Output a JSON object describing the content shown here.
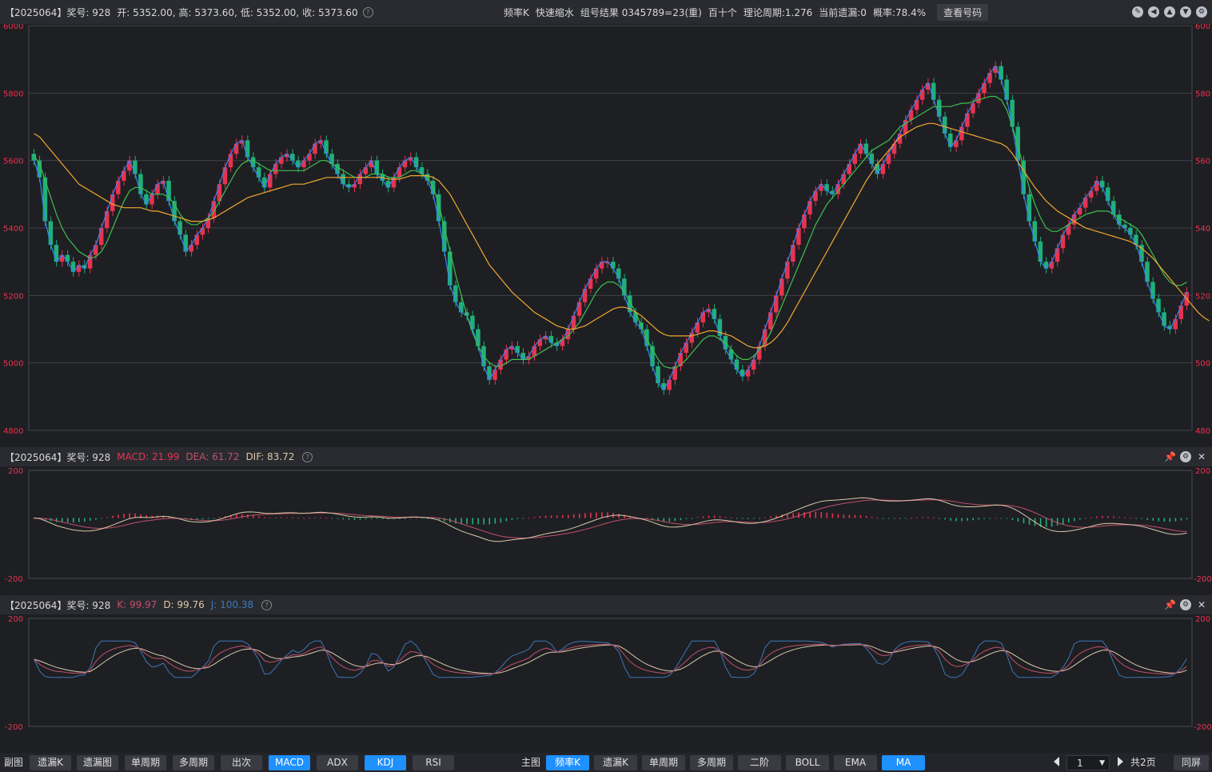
{
  "header": {
    "period": "【2025064】",
    "award": "奖号: 928",
    "open": "开: 5352.00,",
    "high": "高: 5373.60,",
    "low": "低: 5352.00,",
    "close": "收: 5373.60",
    "mode": "频率K",
    "action": "快速缩水",
    "combo": "组号结果 0345789=23(重)",
    "position": "百十个",
    "theory_period": "理论周期:1.276",
    "current_miss": "当前遗漏:0",
    "probability": "概率:78.4%",
    "check_button": "查看号码"
  },
  "macd_panel": {
    "period": "【2025064】",
    "award": "奖号: 928",
    "macd": "MACD: 21.99",
    "dea": "DEA: 61.72",
    "dif": "DIF: 83.72",
    "y_top": "200",
    "y_bottom": "-200"
  },
  "kdj_panel": {
    "period": "【2025064】",
    "award": "奖号: 928",
    "k": "K: 99.97",
    "d": "D: 99.76",
    "j": "J: 100.38",
    "y_top": "200",
    "y_bottom": "-200"
  },
  "colors": {
    "up": "#e8334f",
    "down": "#1fb07a",
    "ma_blue": "#3b82f6",
    "ma_green": "#3fbf4f",
    "ma_orange": "#f0a830",
    "macd_dif": "#d8c8a8",
    "macd_dea": "#c0506a",
    "kdj_k": "#c0506a",
    "kdj_d": "#d8c8a8",
    "kdj_j": "#3b78b8"
  },
  "chart_data": {
    "type": "line",
    "title": "",
    "y_ticks": [
      "6000",
      "5800",
      "5600",
      "5400",
      "5200",
      "5000",
      "4800"
    ],
    "y_right_ticks": [
      "600",
      "580",
      "560",
      "540",
      "520",
      "500",
      "480"
    ],
    "ylim": [
      4800,
      6000
    ],
    "series": [
      {
        "values": [
          5600,
          5550,
          5420,
          5350,
          5300,
          5320,
          5300,
          5270,
          5290,
          5280,
          5320,
          5350,
          5400,
          5450,
          5500,
          5540,
          5570,
          5600,
          5560,
          5500,
          5470,
          5500,
          5530,
          5540,
          5480,
          5420,
          5380,
          5330,
          5350,
          5380,
          5400,
          5430,
          5480,
          5530,
          5580,
          5620,
          5650,
          5660,
          5610,
          5580,
          5550,
          5520,
          5560,
          5590,
          5610,
          5620,
          5600,
          5580,
          5600,
          5620,
          5650,
          5660,
          5620,
          5590,
          5560,
          5530,
          5520,
          5530,
          5560,
          5580,
          5600,
          5560,
          5540,
          5520,
          5550,
          5580,
          5600,
          5610,
          5580,
          5560,
          5540,
          5500,
          5420,
          5330,
          5230,
          5180,
          5150,
          5140,
          5100,
          5050,
          4990,
          4950,
          4980,
          5010,
          5040,
          5050,
          5030,
          5010,
          5020,
          5050,
          5070,
          5080,
          5060,
          5050,
          5070,
          5100,
          5140,
          5180,
          5220,
          5250,
          5280,
          5300,
          5300,
          5280,
          5250,
          5200,
          5150,
          5120,
          5100,
          5050,
          4990,
          4940,
          4920,
          4950,
          4990,
          5030,
          5060,
          5090,
          5120,
          5150,
          5160,
          5130,
          5080,
          5040,
          5010,
          4980,
          4960,
          4980,
          5010,
          5050,
          5100,
          5150,
          5200,
          5250,
          5300,
          5350,
          5400,
          5440,
          5480,
          5510,
          5530,
          5510,
          5500,
          5530,
          5560,
          5590,
          5620,
          5650,
          5620,
          5590,
          5560,
          5590,
          5620,
          5650,
          5680,
          5720,
          5750,
          5780,
          5810,
          5830,
          5780,
          5730,
          5680,
          5640,
          5660,
          5700,
          5740,
          5770,
          5800,
          5830,
          5860,
          5880,
          5840,
          5780,
          5700,
          5600,
          5500,
          5420,
          5360,
          5300,
          5280,
          5300,
          5340,
          5380,
          5410,
          5440,
          5460,
          5490,
          5510,
          5540,
          5520,
          5480,
          5440,
          5410,
          5400,
          5380,
          5350,
          5300,
          5240,
          5190,
          5150,
          5110,
          5100,
          5130,
          5170,
          5210
        ]
      },
      {
        "values": [
          5615,
          5590,
          5540,
          5490,
          5440,
          5400,
          5370,
          5350,
          5330,
          5320,
          5310,
          5315,
          5330,
          5360,
          5400,
          5440,
          5480,
          5510,
          5520,
          5520,
          5510,
          5500,
          5500,
          5500,
          5490,
          5470,
          5440,
          5420,
          5410,
          5410,
          5420,
          5430,
          5450,
          5480,
          5510,
          5540,
          5570,
          5590,
          5600,
          5600,
          5590,
          5580,
          5570,
          5570,
          5570,
          5570,
          5570,
          5570,
          5570,
          5580,
          5590,
          5600,
          5600,
          5590,
          5580,
          5570,
          5560,
          5550,
          5550,
          5550,
          5560,
          5560,
          5560,
          5550,
          5550,
          5550,
          5560,
          5570,
          5570,
          5560,
          5550,
          5520,
          5470,
          5400,
          5330,
          5260,
          5200,
          5140,
          5090,
          5050,
          5020,
          5000,
          4990,
          4990,
          5000,
          5010,
          5010,
          5010,
          5010,
          5020,
          5030,
          5040,
          5050,
          5060,
          5070,
          5080,
          5100,
          5120,
          5150,
          5180,
          5210,
          5230,
          5240,
          5240,
          5230,
          5210,
          5180,
          5150,
          5110,
          5070,
          5040,
          5010,
          4990,
          4985,
          4985,
          4995,
          5010,
          5030,
          5050,
          5070,
          5080,
          5080,
          5070,
          5060,
          5040,
          5020,
          5010,
          5010,
          5020,
          5040,
          5060,
          5090,
          5130,
          5170,
          5210,
          5250,
          5290,
          5330,
          5370,
          5410,
          5440,
          5470,
          5490,
          5510,
          5530,
          5550,
          5570,
          5590,
          5610,
          5630,
          5640,
          5650,
          5660,
          5680,
          5700,
          5710,
          5720,
          5730,
          5740,
          5750,
          5760,
          5760,
          5760,
          5760,
          5765,
          5770,
          5770,
          5775,
          5780,
          5785,
          5790,
          5790,
          5780,
          5750,
          5700,
          5640,
          5580,
          5520,
          5470,
          5430,
          5400,
          5390,
          5390,
          5400,
          5410,
          5420,
          5430,
          5440,
          5445,
          5450,
          5450,
          5450,
          5440,
          5430,
          5420,
          5410,
          5400,
          5380,
          5350,
          5320,
          5290,
          5260,
          5240,
          5230,
          5230,
          5240
        ]
      },
      {
        "values": [
          5680,
          5670,
          5650,
          5630,
          5610,
          5590,
          5570,
          5550,
          5530,
          5520,
          5510,
          5500,
          5490,
          5480,
          5470,
          5465,
          5460,
          5460,
          5460,
          5460,
          5455,
          5450,
          5450,
          5445,
          5440,
          5435,
          5430,
          5425,
          5420,
          5420,
          5420,
          5425,
          5430,
          5440,
          5450,
          5460,
          5470,
          5480,
          5490,
          5495,
          5500,
          5505,
          5510,
          5515,
          5520,
          5525,
          5530,
          5530,
          5530,
          5535,
          5540,
          5545,
          5550,
          5550,
          5550,
          5550,
          5550,
          5550,
          5550,
          5550,
          5550,
          5550,
          5550,
          5545,
          5545,
          5545,
          5550,
          5555,
          5555,
          5555,
          5555,
          5550,
          5540,
          5520,
          5500,
          5470,
          5440,
          5410,
          5380,
          5350,
          5320,
          5290,
          5270,
          5250,
          5230,
          5210,
          5195,
          5180,
          5165,
          5150,
          5140,
          5130,
          5120,
          5110,
          5105,
          5100,
          5100,
          5105,
          5110,
          5120,
          5130,
          5140,
          5150,
          5160,
          5165,
          5165,
          5160,
          5150,
          5140,
          5125,
          5110,
          5095,
          5085,
          5080,
          5080,
          5080,
          5080,
          5080,
          5085,
          5090,
          5095,
          5095,
          5090,
          5085,
          5080,
          5070,
          5060,
          5050,
          5045,
          5045,
          5050,
          5060,
          5075,
          5095,
          5120,
          5150,
          5180,
          5210,
          5240,
          5270,
          5300,
          5330,
          5360,
          5390,
          5420,
          5450,
          5480,
          5510,
          5540,
          5565,
          5590,
          5610,
          5630,
          5650,
          5670,
          5680,
          5690,
          5700,
          5705,
          5710,
          5710,
          5705,
          5700,
          5695,
          5690,
          5685,
          5680,
          5675,
          5670,
          5665,
          5660,
          5655,
          5650,
          5640,
          5620,
          5595,
          5570,
          5545,
          5520,
          5500,
          5480,
          5465,
          5450,
          5440,
          5430,
          5420,
          5410,
          5400,
          5395,
          5390,
          5385,
          5380,
          5375,
          5370,
          5365,
          5360,
          5350,
          5340,
          5325,
          5310,
          5290,
          5270,
          5250,
          5230,
          5210,
          5190,
          5170,
          5150,
          5135,
          5125
        ]
      }
    ]
  },
  "bottom": {
    "left_label": "副图",
    "left_buttons": [
      "遗漏K",
      "遗漏图",
      "单周期",
      "多周期",
      "出次",
      "MACD",
      "ADX",
      "KDJ",
      "RSI"
    ],
    "right_label": "主图",
    "right_buttons": [
      "频率K",
      "遗漏K",
      "单周期",
      "多周期",
      "二阶",
      "BOLL",
      "EMA",
      "MA"
    ],
    "page_value": "1",
    "total_pages": "共2页",
    "sync": "同屏"
  }
}
